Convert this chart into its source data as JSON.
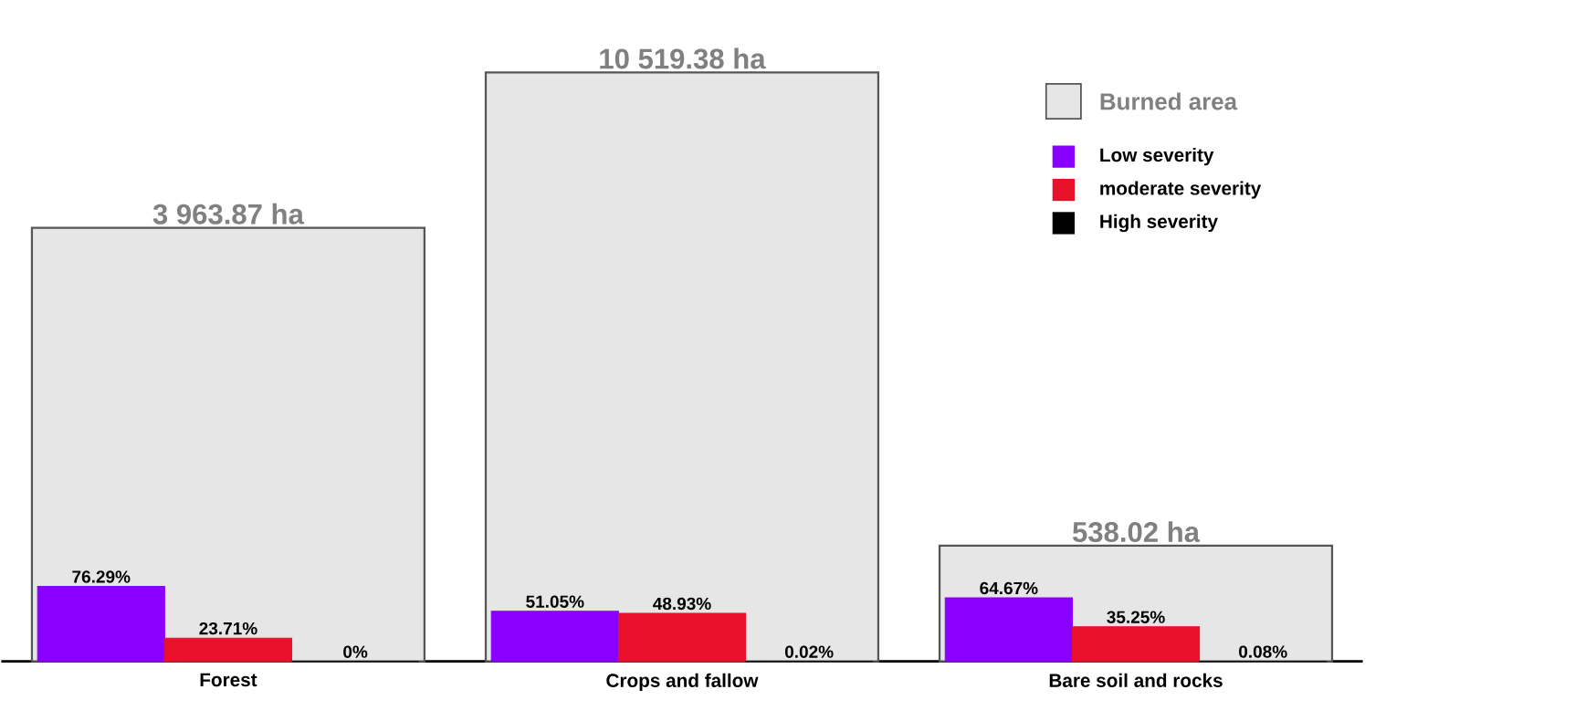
{
  "chart_data": {
    "type": "bar",
    "categories": [
      "Forest",
      "Crops and fallow",
      "Bare soil and rocks"
    ],
    "series": [
      {
        "name": "Burned area",
        "color": "#e6e6e6",
        "values": [
          3963.87,
          10519.38,
          538.02
        ],
        "value_labels": [
          "3 963.87 ha",
          "10 519.38 ha",
          "538.02 ha"
        ]
      },
      {
        "name": "Low severity",
        "color": "#8a00ff",
        "axis": "y2",
        "values": [
          76.29,
          51.05,
          64.67
        ],
        "value_labels": [
          "76.29%",
          "51.05%",
          "64.67%"
        ]
      },
      {
        "name": "moderate severity",
        "color": "#e8102a",
        "axis": "y2",
        "values": [
          23.71,
          48.93,
          35.25
        ],
        "value_labels": [
          "23.71%",
          "48.93%",
          "35.25%"
        ]
      },
      {
        "name": "High severity",
        "color": "#000000",
        "axis": "y2",
        "values": [
          0,
          0.02,
          0.08
        ],
        "value_labels": [
          "0%",
          "0.02%",
          "0.08%"
        ]
      }
    ],
    "ylim": [
      260,
      10600
    ],
    "y2lim": [
      0,
      600
    ],
    "log": true,
    "tick_labels": "x",
    "legend": "top right"
  }
}
